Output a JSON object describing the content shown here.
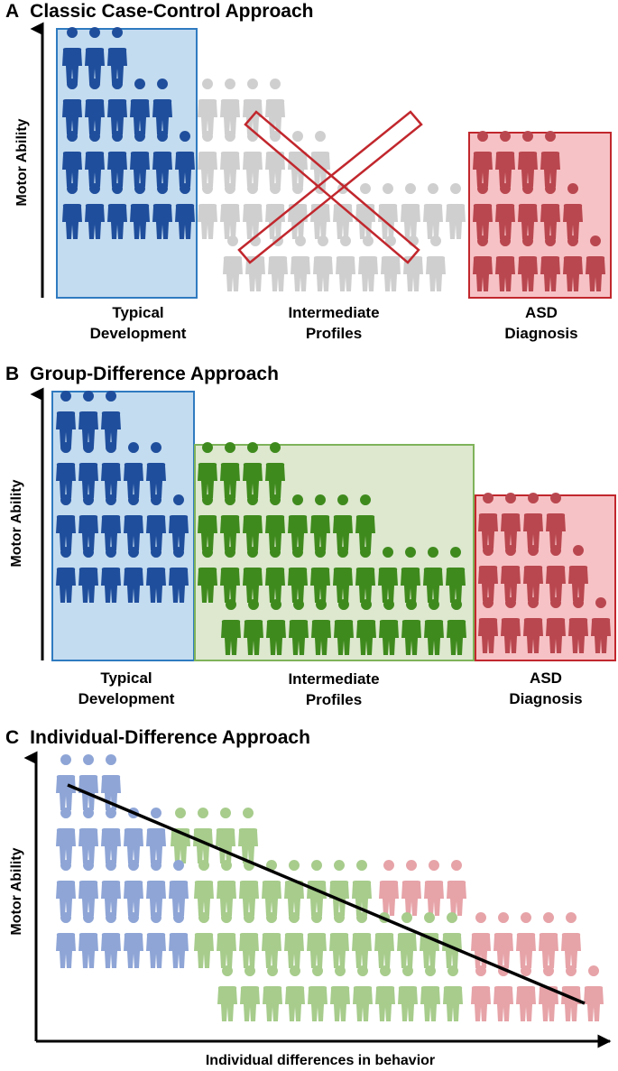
{
  "colors": {
    "typical": "#1f4e9c",
    "intermediate": "#3f8a1d",
    "asd": "#b9474f",
    "excluded": "#cfcfcf",
    "typical_fill": "#c4dcf0",
    "typical_border": "#2f7bc0",
    "intermediate_fill": "#dde8cf",
    "intermediate_border": "#7fb35a",
    "asd_fill": "#f7c2c5",
    "asd_border": "#c1272d",
    "typical_light": "#8ea5d6",
    "intermediate_light": "#a7cc8c",
    "asd_light": "#e6a3a8",
    "cross": "#c1272d"
  },
  "panels": [
    {
      "letter": "A",
      "title": "Classic Case-Control Approach",
      "ylabel": "Motor Ability",
      "groups": [
        {
          "line1": "Typical",
          "line2": "Development"
        },
        {
          "line1": "Intermediate",
          "line2": "Profiles"
        },
        {
          "line1": "ASD",
          "line2": "Diagnosis"
        }
      ]
    },
    {
      "letter": "B",
      "title": "Group-Difference Approach",
      "ylabel": "Motor Ability",
      "groups": [
        {
          "line1": "Typical",
          "line2": "Development"
        },
        {
          "line1": "Intermediate",
          "line2": "Profiles"
        },
        {
          "line1": "ASD",
          "line2": "Diagnosis"
        }
      ]
    },
    {
      "letter": "C",
      "title": "Individual-Difference Approach",
      "ylabel": "Motor Ability",
      "xlabel": "Individual differences in behavior"
    }
  ]
}
